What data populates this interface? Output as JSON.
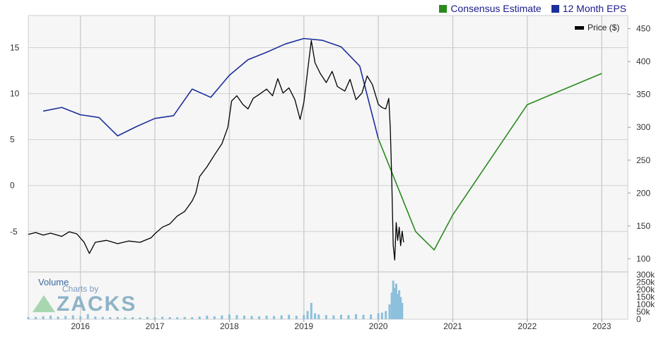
{
  "legend": {
    "consensus_label": "Consensus Estimate",
    "eps_label": "12 Month EPS",
    "price_label": "Price ($)"
  },
  "watermark": {
    "volume": "Volume",
    "charts_by": "Charts by",
    "brand": "ZACKS"
  },
  "colors": {
    "consensus": "#2a8a1e",
    "eps": "#1c2f9c",
    "price": "#000000",
    "volume": "#8cc0dc",
    "grid": "#d0d0d0",
    "plot_bg": "#f4f4f4"
  },
  "chart_data": {
    "type": "line",
    "x_ticks": [
      "2016",
      "2017",
      "2018",
      "2019",
      "2020",
      "2021",
      "2022",
      "2023"
    ],
    "x_range": [
      2015.3,
      2023.35
    ],
    "left_axis": {
      "ticks": [
        "15",
        "10",
        "5",
        "0",
        "-5"
      ],
      "ylim": [
        -9.4,
        18.5
      ]
    },
    "right_axis": {
      "ticks": [
        "450",
        "400",
        "350",
        "300",
        "250",
        "200",
        "150",
        "100"
      ],
      "ylim": [
        80,
        470
      ]
    },
    "volume_axis": {
      "ticks": [
        "300k",
        "250k",
        "200k",
        "150k",
        "100k",
        "50k",
        "0"
      ],
      "ylim": [
        0,
        300000
      ]
    },
    "series": [
      {
        "name": "12 Month EPS",
        "axis": "left",
        "points": [
          [
            2015.5,
            8.1
          ],
          [
            2015.75,
            8.5
          ],
          [
            2016.0,
            7.7
          ],
          [
            2016.25,
            7.4
          ],
          [
            2016.5,
            5.4
          ],
          [
            2016.75,
            6.4
          ],
          [
            2017.0,
            7.3
          ],
          [
            2017.25,
            7.6
          ],
          [
            2017.5,
            10.5
          ],
          [
            2017.75,
            9.6
          ],
          [
            2018.0,
            12.0
          ],
          [
            2018.25,
            13.7
          ],
          [
            2018.5,
            14.5
          ],
          [
            2018.75,
            15.4
          ],
          [
            2019.0,
            16.0
          ],
          [
            2019.25,
            15.8
          ],
          [
            2019.5,
            15.1
          ],
          [
            2019.75,
            13.0
          ],
          [
            2020.0,
            5.1
          ]
        ]
      },
      {
        "name": "Consensus Estimate",
        "axis": "left",
        "points": [
          [
            2020.0,
            5.1
          ],
          [
            2020.5,
            -5.0
          ],
          [
            2020.75,
            -7.0
          ],
          [
            2021.0,
            -3.2
          ],
          [
            2022.0,
            8.8
          ],
          [
            2023.0,
            12.2
          ]
        ]
      },
      {
        "name": "Price ($)",
        "axis": "right",
        "points": [
          [
            2015.3,
            137
          ],
          [
            2015.4,
            140
          ],
          [
            2015.5,
            136
          ],
          [
            2015.6,
            139
          ],
          [
            2015.75,
            134
          ],
          [
            2015.85,
            141
          ],
          [
            2015.95,
            138
          ],
          [
            2016.05,
            125
          ],
          [
            2016.12,
            108
          ],
          [
            2016.2,
            125
          ],
          [
            2016.35,
            128
          ],
          [
            2016.5,
            123
          ],
          [
            2016.65,
            127
          ],
          [
            2016.8,
            125
          ],
          [
            2016.95,
            132
          ],
          [
            2017.0,
            138
          ],
          [
            2017.1,
            148
          ],
          [
            2017.2,
            153
          ],
          [
            2017.3,
            165
          ],
          [
            2017.4,
            172
          ],
          [
            2017.5,
            188
          ],
          [
            2017.55,
            200
          ],
          [
            2017.6,
            225
          ],
          [
            2017.7,
            240
          ],
          [
            2017.8,
            258
          ],
          [
            2017.9,
            275
          ],
          [
            2017.98,
            300
          ],
          [
            2018.03,
            340
          ],
          [
            2018.1,
            348
          ],
          [
            2018.18,
            335
          ],
          [
            2018.25,
            328
          ],
          [
            2018.32,
            344
          ],
          [
            2018.4,
            350
          ],
          [
            2018.5,
            358
          ],
          [
            2018.58,
            348
          ],
          [
            2018.65,
            374
          ],
          [
            2018.72,
            352
          ],
          [
            2018.8,
            360
          ],
          [
            2018.88,
            342
          ],
          [
            2018.95,
            312
          ],
          [
            2019.0,
            338
          ],
          [
            2019.05,
            385
          ],
          [
            2019.1,
            432
          ],
          [
            2019.15,
            398
          ],
          [
            2019.22,
            382
          ],
          [
            2019.3,
            368
          ],
          [
            2019.38,
            385
          ],
          [
            2019.45,
            362
          ],
          [
            2019.55,
            355
          ],
          [
            2019.62,
            373
          ],
          [
            2019.7,
            342
          ],
          [
            2019.78,
            352
          ],
          [
            2019.85,
            378
          ],
          [
            2019.92,
            365
          ],
          [
            2020.0,
            335
          ],
          [
            2020.05,
            330
          ],
          [
            2020.1,
            328
          ],
          [
            2020.14,
            344
          ],
          [
            2020.16,
            300
          ],
          [
            2020.18,
            220
          ],
          [
            2020.2,
            120
          ],
          [
            2020.22,
            98
          ],
          [
            2020.24,
            155
          ],
          [
            2020.26,
            128
          ],
          [
            2020.28,
            148
          ],
          [
            2020.3,
            120
          ],
          [
            2020.32,
            142
          ],
          [
            2020.34,
            125
          ]
        ]
      },
      {
        "name": "Volume",
        "axis": "volume",
        "points": [
          [
            2015.3,
            14000
          ],
          [
            2015.4,
            16000
          ],
          [
            2015.5,
            20000
          ],
          [
            2015.6,
            24000
          ],
          [
            2015.7,
            18000
          ],
          [
            2015.8,
            22000
          ],
          [
            2015.9,
            26000
          ],
          [
            2016.0,
            20000
          ],
          [
            2016.1,
            34000
          ],
          [
            2016.2,
            18000
          ],
          [
            2016.3,
            16000
          ],
          [
            2016.4,
            14000
          ],
          [
            2016.5,
            15000
          ],
          [
            2016.6,
            13000
          ],
          [
            2016.7,
            14000
          ],
          [
            2016.8,
            12000
          ],
          [
            2016.9,
            15000
          ],
          [
            2017.0,
            12000
          ],
          [
            2017.1,
            16000
          ],
          [
            2017.2,
            14000
          ],
          [
            2017.3,
            13000
          ],
          [
            2017.4,
            15000
          ],
          [
            2017.5,
            14000
          ],
          [
            2017.6,
            18000
          ],
          [
            2017.7,
            24000
          ],
          [
            2017.8,
            20000
          ],
          [
            2017.9,
            26000
          ],
          [
            2018.0,
            32000
          ],
          [
            2018.1,
            28000
          ],
          [
            2018.2,
            24000
          ],
          [
            2018.3,
            22000
          ],
          [
            2018.4,
            20000
          ],
          [
            2018.5,
            24000
          ],
          [
            2018.6,
            22000
          ],
          [
            2018.7,
            26000
          ],
          [
            2018.8,
            30000
          ],
          [
            2018.9,
            24000
          ],
          [
            2019.0,
            28000
          ],
          [
            2019.05,
            55000
          ],
          [
            2019.1,
            110000
          ],
          [
            2019.15,
            40000
          ],
          [
            2019.2,
            32000
          ],
          [
            2019.3,
            28000
          ],
          [
            2019.4,
            26000
          ],
          [
            2019.5,
            30000
          ],
          [
            2019.6,
            28000
          ],
          [
            2019.7,
            34000
          ],
          [
            2019.8,
            30000
          ],
          [
            2019.9,
            32000
          ],
          [
            2020.0,
            40000
          ],
          [
            2020.05,
            45000
          ],
          [
            2020.1,
            55000
          ],
          [
            2020.15,
            100000
          ],
          [
            2020.18,
            180000
          ],
          [
            2020.2,
            260000
          ],
          [
            2020.22,
            210000
          ],
          [
            2020.24,
            240000
          ],
          [
            2020.26,
            170000
          ],
          [
            2020.28,
            195000
          ],
          [
            2020.3,
            150000
          ],
          [
            2020.32,
            110000
          ]
        ]
      }
    ],
    "grid": true,
    "legend_position": "top-right"
  }
}
